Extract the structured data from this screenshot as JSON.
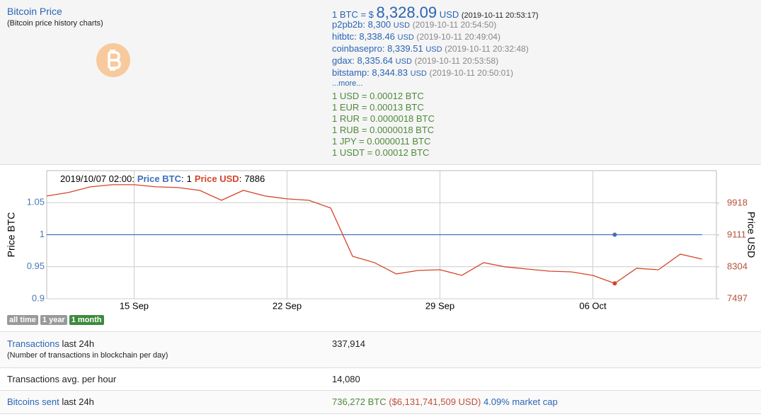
{
  "header": {
    "title": "Bitcoin Price",
    "subtitle": "(Bitcoin price history charts)"
  },
  "price": {
    "prefix": "1 BTC = $",
    "value": "8,328.09",
    "unit": "USD",
    "time": "(2019-10-11 20:53:17)"
  },
  "exchanges": [
    {
      "name": "p2pb2b:",
      "price": "8,300",
      "unit": "USD",
      "time": "(2019-10-11 20:54:50)"
    },
    {
      "name": "hitbtc:",
      "price": "8,338.46",
      "unit": "USD",
      "time": "(2019-10-11 20:49:04)"
    },
    {
      "name": "coinbasepro:",
      "price": "8,339.51",
      "unit": "USD",
      "time": "(2019-10-11 20:32:48)"
    },
    {
      "name": "gdax:",
      "price": "8,335.64",
      "unit": "USD",
      "time": "(2019-10-11 20:53:58)"
    },
    {
      "name": "bitstamp:",
      "price": "8,344.83",
      "unit": "USD",
      "time": "(2019-10-11 20:50:01)"
    }
  ],
  "more": "...more...",
  "conversions": [
    "1 USD = 0.00012 BTC",
    "1 EUR = 0.00013 BTC",
    "1 RUR = 0.0000018 BTC",
    "1 RUB = 0.0000018 BTC",
    "1 JPY = 0.0000011 BTC",
    "1 USDT = 0.00012 BTC"
  ],
  "chart_data": {
    "type": "line",
    "y_label": "Price BTC",
    "y2_label": "Price USD",
    "tooltip": {
      "time": "2019/10/07 02:00:",
      "separator": ":",
      "index": 26
    },
    "categories": [
      null,
      null,
      null,
      null,
      "15 Sep",
      null,
      null,
      null,
      null,
      null,
      null,
      "22 Sep",
      null,
      null,
      null,
      null,
      null,
      null,
      "29 Sep",
      null,
      null,
      null,
      null,
      null,
      null,
      "06 Oct",
      null,
      null,
      null,
      null,
      null
    ],
    "series": [
      {
        "name": "Price BTC",
        "color": "#3f6fba",
        "values": [
          1,
          1,
          1,
          1,
          1,
          1,
          1,
          1,
          1,
          1,
          1,
          1,
          1,
          1,
          1,
          1,
          1,
          1,
          1,
          1,
          1,
          1,
          1,
          1,
          1,
          1,
          1,
          1,
          1,
          1,
          1
        ]
      },
      {
        "name": "Price USD",
        "color": "#d4452a",
        "axis": "y2",
        "values": [
          10097,
          10187,
          10330,
          10384,
          10384,
          10330,
          10312,
          10241,
          9990,
          10241,
          10097,
          10026,
          9990,
          9793,
          8573,
          8412,
          8125,
          8214,
          8232,
          8089,
          8412,
          8304,
          8250,
          8196,
          8178,
          8089,
          7886,
          8268,
          8232,
          8627,
          8501
        ]
      }
    ],
    "ylim": [
      0.9,
      1.1
    ],
    "yticks": [
      0.9,
      0.95,
      1,
      1.05
    ],
    "y2lim": [
      7497,
      10740
    ],
    "y2ticks": [
      7497,
      8304,
      9111,
      9918
    ],
    "grid": true
  },
  "range_buttons": [
    "all time",
    "1 year",
    "1 month"
  ],
  "stats": [
    {
      "link": "Transactions",
      "label": " last 24h",
      "note": "(Number of transactions in blockchain per day)",
      "value": "337,914"
    },
    {
      "label": "Transactions avg. per hour",
      "value": "14,080"
    },
    {
      "link": "Bitcoins sent",
      "label": " last 24h",
      "value": "736,272 BTC",
      "value_usd": "($6,131,741,509 USD)",
      "value_cap": "4.09% market cap"
    }
  ]
}
